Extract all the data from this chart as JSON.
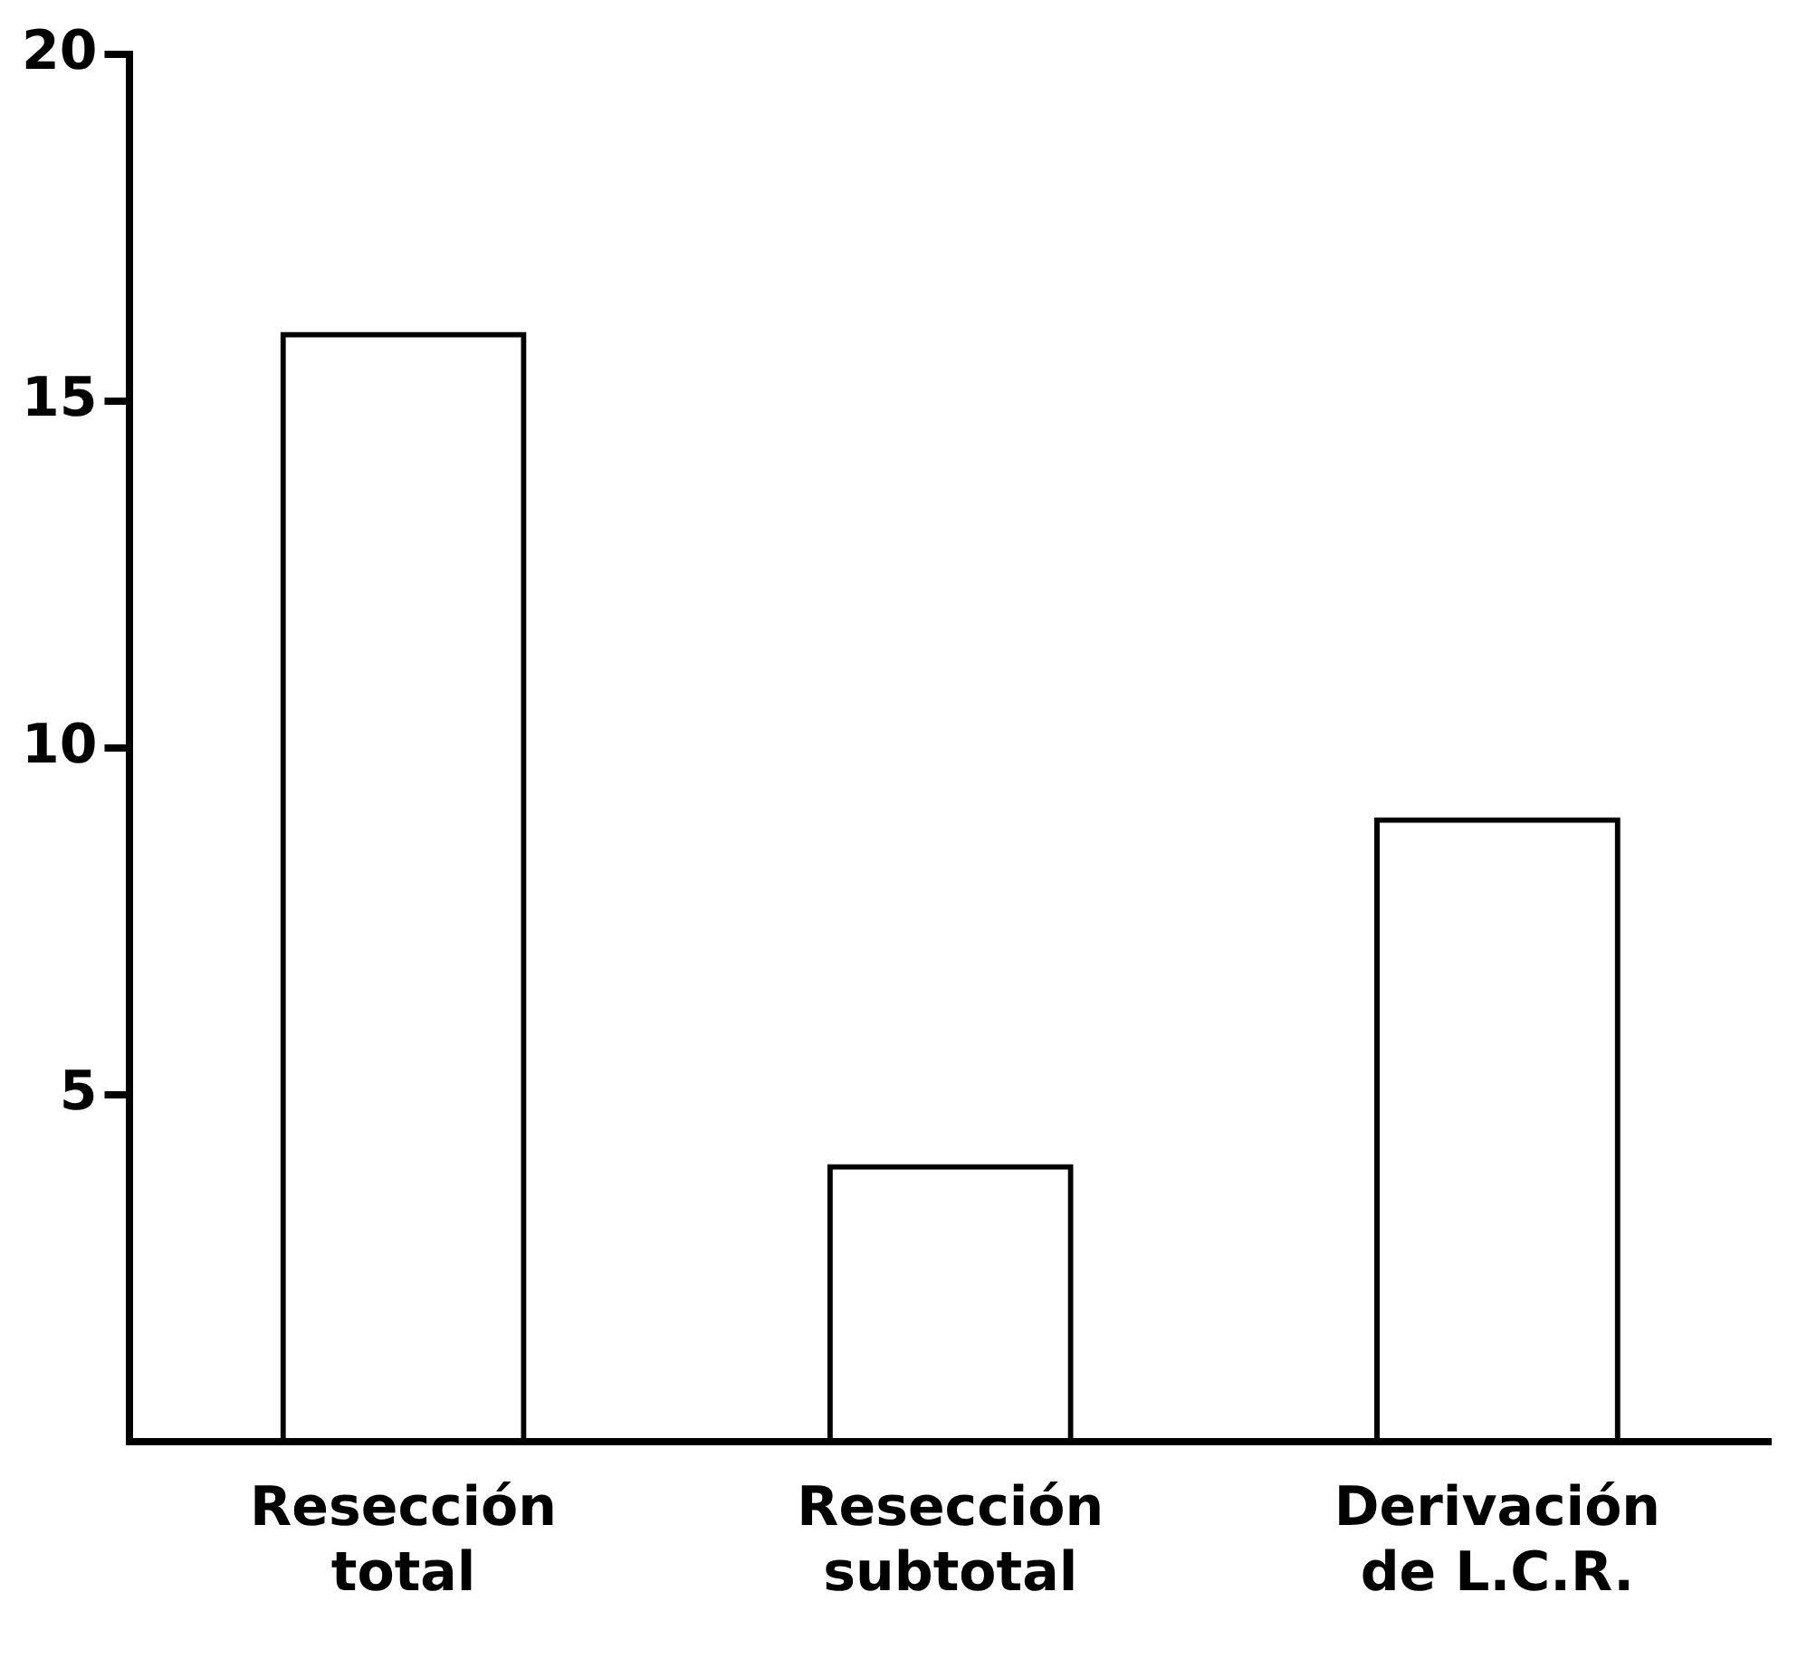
{
  "chart_data": {
    "type": "bar",
    "categories": [
      "Resección total",
      "Resección subtotal",
      "Derivación de L.C.R."
    ],
    "values": [
      16,
      4,
      9
    ],
    "color": "#000000",
    "ylim": [
      0,
      20
    ],
    "yticks": [
      5,
      10,
      15,
      20
    ],
    "grid": false
  }
}
